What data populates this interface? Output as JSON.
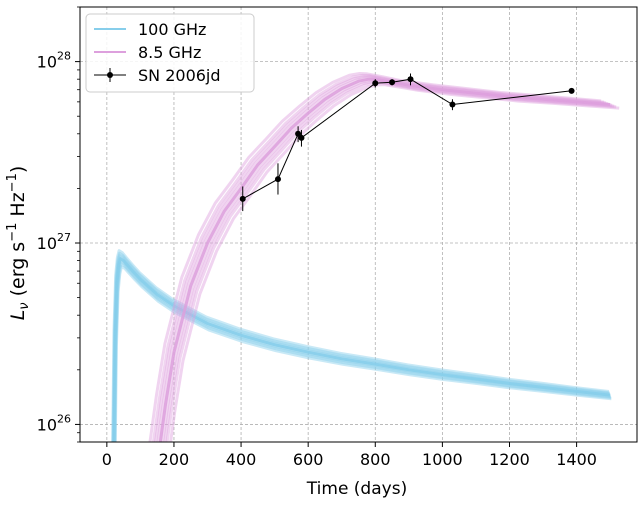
{
  "chart_data": {
    "type": "line",
    "title": "",
    "xlabel": "Time (days)",
    "ylabel_parts": {
      "prefix": "L",
      "sub": "ν",
      "mid1": " (erg s",
      "sup1": "−1",
      "mid2": " Hz",
      "sup2": "−1",
      "suffix": ")"
    },
    "xlim": [
      -80,
      1580
    ],
    "ylim": [
      8e+25,
      2e+28
    ],
    "yscale": "log",
    "grid": true,
    "legend_position": "top-left",
    "x_ticks": [
      {
        "value": 0,
        "label": "0"
      },
      {
        "value": 200,
        "label": "200"
      },
      {
        "value": 400,
        "label": "400"
      },
      {
        "value": 600,
        "label": "600"
      },
      {
        "value": 800,
        "label": "800"
      },
      {
        "value": 1000,
        "label": "1000"
      },
      {
        "value": 1200,
        "label": "1200"
      },
      {
        "value": 1400,
        "label": "1400"
      }
    ],
    "y_ticks": [
      {
        "value": 1e+26,
        "base": "10",
        "exp": "26"
      },
      {
        "value": 1e+27,
        "base": "10",
        "exp": "27"
      },
      {
        "value": 1e+28,
        "base": "10",
        "exp": "28"
      }
    ],
    "series": [
      {
        "name": "100 GHz",
        "kind": "model-band",
        "color": "#87CEEB",
        "x": [
          20,
          25,
          30,
          35,
          40,
          50,
          60,
          80,
          100,
          150,
          200,
          300,
          400,
          500,
          600,
          700,
          800,
          900,
          1000,
          1100,
          1200,
          1300,
          1400,
          1500
        ],
        "y": [
          5e+25,
          3e+26,
          6e+26,
          7.5e+26,
          8.2e+26,
          8e+26,
          7.6e+26,
          6.9e+26,
          6.3e+26,
          5.2e+26,
          4.5e+26,
          3.6e+26,
          3.1e+26,
          2.75e+26,
          2.5e+26,
          2.3e+26,
          2.15e+26,
          2e+26,
          1.88e+26,
          1.78e+26,
          1.68e+26,
          1.6e+26,
          1.52e+26,
          1.45e+26
        ]
      },
      {
        "name": "8.5 GHz",
        "kind": "model-band",
        "color": "#DDA0DD",
        "x": [
          150,
          175,
          200,
          250,
          300,
          350,
          400,
          450,
          500,
          550,
          600,
          650,
          700,
          750,
          780,
          800,
          850,
          900,
          1000,
          1100,
          1200,
          1300,
          1400,
          1500
        ],
        "y": [
          6e+25,
          1.3e+26,
          2.5e+26,
          5.8e+26,
          1e+27,
          1.5e+27,
          2e+27,
          2.7e+27,
          3.4e+27,
          4.3e+27,
          5.2e+27,
          6.2e+27,
          7.1e+27,
          7.8e+27,
          8e+27,
          8e+27,
          7.7e+27,
          7.4e+27,
          7e+27,
          6.7e+27,
          6.4e+27,
          6.2e+27,
          6e+27,
          5.8e+27
        ]
      },
      {
        "name": "SN 2006jd",
        "kind": "data",
        "color": "#000000",
        "points": [
          {
            "x": 405,
            "y": 1.75e+27,
            "err_lo": 1.5e+27,
            "err_hi": 2.05e+27
          },
          {
            "x": 510,
            "y": 2.25e+27,
            "err_lo": 1.85e+27,
            "err_hi": 2.75e+27
          },
          {
            "x": 570,
            "y": 4e+27,
            "err_lo": 3.6e+27,
            "err_hi": 4.4e+27
          },
          {
            "x": 580,
            "y": 3.8e+27,
            "err_lo": 3.4e+27,
            "err_hi": 4.2e+27
          },
          {
            "x": 800,
            "y": 7.6e+27,
            "err_lo": 7.2e+27,
            "err_hi": 8e+27
          },
          {
            "x": 850,
            "y": 7.7e+27,
            "err_lo": 7.4e+27,
            "err_hi": 8e+27
          },
          {
            "x": 905,
            "y": 8e+27,
            "err_lo": 7.4e+27,
            "err_hi": 8.6e+27
          },
          {
            "x": 1030,
            "y": 5.8e+27,
            "err_lo": 5.4e+27,
            "err_hi": 6.2e+27
          },
          {
            "x": 1385,
            "y": 6.9e+27,
            "err_lo": 6.7e+27,
            "err_hi": 7.1e+27
          }
        ]
      }
    ]
  }
}
